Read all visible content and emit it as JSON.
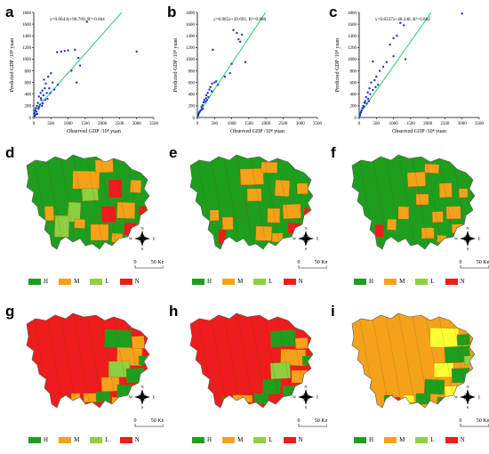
{
  "panels": {
    "scatter": [
      {
        "label": "a",
        "equation": "y=0.6643x+98.769, R²=0.664"
      },
      {
        "label": "b",
        "equation": "y=0.885x+39.691, R²=0.880"
      },
      {
        "label": "c",
        "equation": "y=0.8337x+48.248, R²=0.884"
      }
    ],
    "maps": [
      "d",
      "e",
      "f",
      "g",
      "h",
      "i"
    ]
  },
  "legend": {
    "items": [
      {
        "key": "H",
        "color": "#1e9e1e"
      },
      {
        "key": "M",
        "color": "#f5a21a"
      },
      {
        "key": "L",
        "color": "#8fd040"
      },
      {
        "key": "N",
        "color": "#ee1c1c"
      }
    ]
  },
  "scale": {
    "zero": "0",
    "text": "50 Km"
  },
  "compass": {
    "n": "N",
    "s": "S",
    "e": "E",
    "w": "W"
  },
  "colors": {
    "points": "#1d2fd6",
    "fit_line": "#21c96b",
    "green": "#1e9e1e",
    "orange": "#f5a21a",
    "lightgreen": "#8fd040",
    "red": "#ee1c1c",
    "yellow": "#ffff33"
  },
  "chart_data": [
    {
      "type": "scatter",
      "xlabel": "Observed GDP /10⁸ yuan",
      "ylabel": "Predicted GDP /10⁸ yuan",
      "xlim": [
        0,
        3500
      ],
      "ylim": [
        0,
        1800
      ],
      "xticks": [
        0,
        500,
        1000,
        1500,
        2000,
        2500,
        3000,
        3500
      ],
      "yticks": [
        0,
        200,
        400,
        600,
        800,
        1000,
        1200,
        1400,
        1600,
        1800
      ],
      "fit": {
        "slope": 0.6643,
        "intercept": 98.769,
        "r2": 0.664
      },
      "points": [
        [
          1200,
          1160
        ],
        [
          1000,
          1150
        ],
        [
          900,
          1140
        ],
        [
          800,
          1130
        ],
        [
          680,
          1120
        ],
        [
          1550,
          1640
        ],
        [
          1300,
          1020
        ],
        [
          3000,
          1130
        ],
        [
          1250,
          600
        ],
        [
          1350,
          890
        ],
        [
          1100,
          800
        ],
        [
          300,
          650
        ],
        [
          420,
          700
        ],
        [
          500,
          760
        ],
        [
          550,
          600
        ],
        [
          350,
          580
        ],
        [
          600,
          480
        ],
        [
          450,
          500
        ],
        [
          700,
          560
        ],
        [
          250,
          460
        ],
        [
          380,
          420
        ],
        [
          200,
          420
        ],
        [
          280,
          380
        ],
        [
          150,
          360
        ],
        [
          330,
          300
        ],
        [
          400,
          320
        ],
        [
          220,
          300
        ],
        [
          120,
          250
        ],
        [
          180,
          220
        ],
        [
          90,
          200
        ],
        [
          260,
          240
        ],
        [
          60,
          160
        ],
        [
          140,
          150
        ],
        [
          40,
          120
        ],
        [
          80,
          100
        ],
        [
          20,
          80
        ],
        [
          100,
          60
        ],
        [
          50,
          50
        ],
        [
          30,
          30
        ],
        [
          160,
          180
        ],
        [
          210,
          330
        ],
        [
          480,
          420
        ],
        [
          320,
          500
        ],
        [
          240,
          200
        ]
      ]
    },
    {
      "type": "scatter",
      "xlabel": "Observed GDP /10⁸ yuan",
      "ylabel": "Predicted GDP /10⁸ yuan",
      "xlim": [
        0,
        3500
      ],
      "ylim": [
        0,
        1800
      ],
      "xticks": [
        0,
        500,
        1000,
        1500,
        2000,
        2500,
        3000,
        3500
      ],
      "yticks": [
        0,
        200,
        400,
        600,
        800,
        1000,
        1200,
        1400,
        1600,
        1800
      ],
      "fit": {
        "slope": 0.885,
        "intercept": 39.691,
        "r2": 0.88
      },
      "points": [
        [
          1050,
          1500
        ],
        [
          1150,
          1450
        ],
        [
          1300,
          1420
        ],
        [
          1250,
          1300
        ],
        [
          1200,
          1340
        ],
        [
          1400,
          950
        ],
        [
          1000,
          920
        ],
        [
          950,
          760
        ],
        [
          800,
          700
        ],
        [
          450,
          1160
        ],
        [
          550,
          620
        ],
        [
          500,
          600
        ],
        [
          430,
          580
        ],
        [
          380,
          520
        ],
        [
          350,
          480
        ],
        [
          420,
          450
        ],
        [
          300,
          420
        ],
        [
          260,
          380
        ],
        [
          320,
          350
        ],
        [
          200,
          300
        ],
        [
          240,
          270
        ],
        [
          180,
          260
        ],
        [
          150,
          210
        ],
        [
          120,
          180
        ],
        [
          160,
          150
        ],
        [
          90,
          120
        ],
        [
          70,
          100
        ],
        [
          50,
          80
        ],
        [
          30,
          50
        ],
        [
          20,
          30
        ],
        [
          250,
          330
        ],
        [
          600,
          560
        ],
        [
          280,
          300
        ],
        [
          130,
          140
        ]
      ]
    },
    {
      "type": "scatter",
      "xlabel": "Observed GDP /10⁸ yuan",
      "ylabel": "Predicted GDP /10⁸ yuan",
      "xlim": [
        0,
        3500
      ],
      "ylim": [
        0,
        1800
      ],
      "xticks": [
        0,
        500,
        1000,
        1500,
        2000,
        2500,
        3000,
        3500
      ],
      "yticks": [
        0,
        200,
        400,
        600,
        800,
        1000,
        1200,
        1400,
        1600,
        1800
      ],
      "fit": {
        "slope": 0.8337,
        "intercept": 48.248,
        "r2": 0.884
      },
      "points": [
        [
          3000,
          1780
        ],
        [
          1200,
          1620
        ],
        [
          1300,
          1580
        ],
        [
          1100,
          1400
        ],
        [
          1000,
          1360
        ],
        [
          900,
          1250
        ],
        [
          1000,
          1050
        ],
        [
          1350,
          1000
        ],
        [
          800,
          950
        ],
        [
          700,
          870
        ],
        [
          600,
          800
        ],
        [
          400,
          960
        ],
        [
          500,
          700
        ],
        [
          450,
          640
        ],
        [
          350,
          600
        ],
        [
          550,
          560
        ],
        [
          300,
          500
        ],
        [
          400,
          470
        ],
        [
          250,
          430
        ],
        [
          320,
          400
        ],
        [
          200,
          350
        ],
        [
          260,
          320
        ],
        [
          180,
          280
        ],
        [
          150,
          250
        ],
        [
          120,
          200
        ],
        [
          90,
          160
        ],
        [
          70,
          120
        ],
        [
          50,
          90
        ],
        [
          30,
          60
        ],
        [
          20,
          30
        ],
        [
          220,
          240
        ],
        [
          480,
          520
        ],
        [
          280,
          280
        ],
        [
          140,
          180
        ]
      ]
    }
  ]
}
